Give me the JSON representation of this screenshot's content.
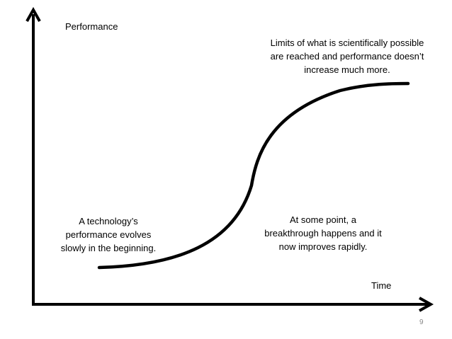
{
  "axes": {
    "y_label": "Performance",
    "x_label": "Time"
  },
  "annotations": {
    "top": [
      "Limits of what is scientifically possible",
      "are reached and performance doesn’t",
      "increase much more."
    ],
    "left": [
      "A technology’s",
      "performance evolves",
      "slowly in the beginning."
    ],
    "right": [
      "At some point, a",
      "breakthrough happens and it",
      "now improves rapidly."
    ]
  },
  "slide_number": "9",
  "colors": {
    "stroke": "#000000",
    "page_number": "#888888"
  }
}
